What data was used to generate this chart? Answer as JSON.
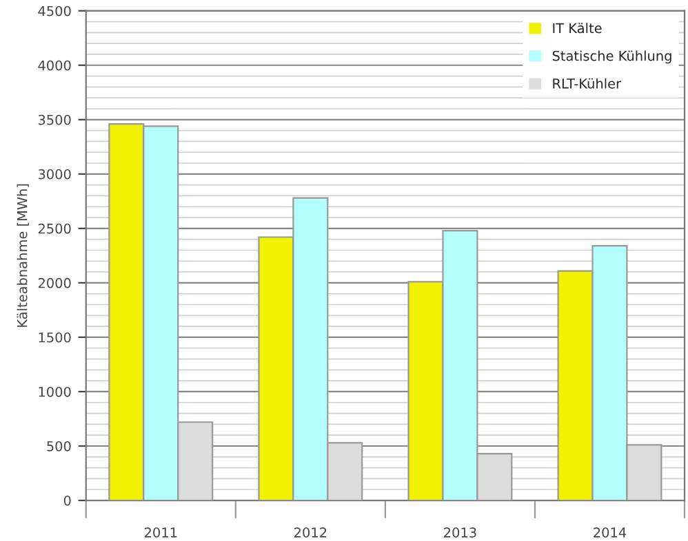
{
  "chart_data": {
    "type": "bar",
    "ylabel": "Kälteabnahme [MWh]",
    "categories": [
      "2011",
      "2012",
      "2013",
      "2014"
    ],
    "series": [
      {
        "name": "IT Kälte",
        "color": "#f2f200",
        "values": [
          3460,
          2420,
          2010,
          2110
        ]
      },
      {
        "name": "Statische Kühlung",
        "color": "#b3fefe",
        "values": [
          3440,
          2780,
          2480,
          2340
        ]
      },
      {
        "name": "RLT-Kühler",
        "color": "#dcdcdc",
        "values": [
          720,
          530,
          430,
          510
        ]
      }
    ],
    "ylim": [
      0,
      4500
    ],
    "yticks": [
      0,
      500,
      1000,
      1500,
      2000,
      2500,
      3000,
      3500,
      4000,
      4500
    ],
    "grid": "y",
    "legend": "top right"
  }
}
